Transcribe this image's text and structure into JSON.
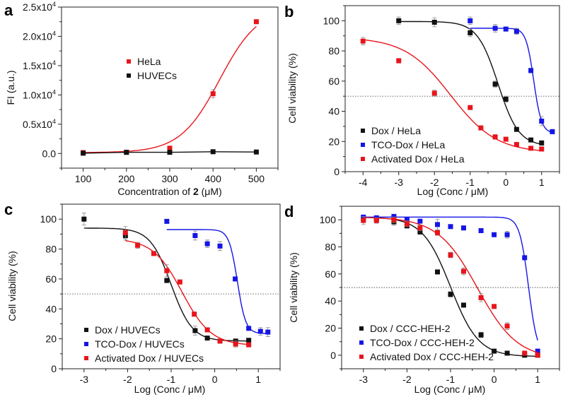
{
  "chart_data": [
    {
      "panel": "a",
      "type": "line",
      "title": "",
      "xlabel": "Concentration of 2 (μM)",
      "xlabel_parts": [
        "Concentration of ",
        "2",
        " (μM)"
      ],
      "ylabel": "FI (a.u.)",
      "xlim": [
        50,
        550
      ],
      "ylim": [
        -2500,
        25000
      ],
      "xticks": [
        100,
        200,
        300,
        400,
        500
      ],
      "xtick_labels": [
        "100",
        "200",
        "300",
        "400",
        "500"
      ],
      "yticks": [
        0,
        5000,
        10000,
        15000,
        20000,
        25000
      ],
      "ytick_labels": [
        "0.0",
        "0.5x10⁴",
        "1.0x10⁴",
        "1.5x10⁴",
        "2.0x10⁴",
        "2.5x10⁴"
      ],
      "grid": false,
      "legend_position": "center-left",
      "reference_line": null,
      "series": [
        {
          "name": "HeLa",
          "color": "#e8141b",
          "x": [
            100,
            200,
            300,
            400,
            500
          ],
          "y": [
            150,
            200,
            900,
            10200,
            22500
          ],
          "err": [
            0,
            0,
            0,
            700,
            0
          ],
          "fit": {
            "kind": "sigmoid-linear",
            "bottom": 150,
            "top": 25000,
            "x50": 415,
            "slope": 0.022
          }
        },
        {
          "name": "HUVECs",
          "color": "#111111",
          "x": [
            100,
            200,
            300,
            400,
            500
          ],
          "y": [
            50,
            200,
            200,
            300,
            250
          ],
          "err": [
            0,
            0,
            0,
            0,
            0
          ],
          "fit": {
            "kind": "flat",
            "value": 200
          }
        }
      ]
    },
    {
      "panel": "b",
      "type": "line",
      "title": "",
      "xlabel": "Log (Conc / μM)",
      "ylabel": "Cell viability (%)",
      "xlim": [
        -4.5,
        1.5
      ],
      "ylim": [
        0,
        110
      ],
      "xticks": [
        -4,
        -3,
        -2,
        -1,
        0,
        1
      ],
      "xtick_labels": [
        "-4",
        "-3",
        "-2",
        "-1",
        "0",
        "1"
      ],
      "yticks": [
        0,
        20,
        40,
        60,
        80,
        100
      ],
      "ytick_labels": [
        "0",
        "20",
        "40",
        "60",
        "80",
        "100"
      ],
      "grid": false,
      "legend_position": "bottom-left",
      "reference_line": 50,
      "series": [
        {
          "name": "Dox / HeLa",
          "color": "#111111",
          "x": [
            -3,
            -2,
            -1,
            -0.3,
            0,
            0.3,
            0.7,
            1
          ],
          "y": [
            100,
            99,
            92,
            58,
            48,
            28,
            21,
            19
          ],
          "err": [
            2.5,
            3,
            2.5,
            2,
            2,
            1,
            1,
            1.5
          ],
          "fit": {
            "kind": "logistic",
            "bottom": 17,
            "top": 99.5,
            "logIC50": -0.22,
            "hill": 1.5,
            "range": [
              -3,
              1
            ]
          }
        },
        {
          "name": "TCO-Dox / HeLa",
          "color": "#1515e6",
          "x": [
            -1,
            -0.3,
            0,
            0.3,
            0.7,
            1,
            1.3
          ],
          "y": [
            100,
            95,
            94.5,
            93,
            67,
            33.5,
            26.5
          ],
          "err": [
            2.5,
            2.5,
            1,
            2,
            1.5,
            3,
            1.5
          ],
          "fit": {
            "kind": "logistic",
            "bottom": 25.5,
            "top": 95,
            "logIC50": 0.78,
            "hill": 4,
            "range": [
              -1,
              1.3
            ]
          }
        },
        {
          "name": "Activated Dox / HeLa",
          "color": "#e8141b",
          "x": [
            -4,
            -3,
            -2,
            -1,
            -0.7,
            -0.3,
            0,
            0.3,
            0.7,
            1
          ],
          "y": [
            86.5,
            73.5,
            52,
            42.5,
            29,
            23,
            21.5,
            18,
            15.5,
            15
          ],
          "err": [
            2.5,
            1.5,
            2,
            0.5,
            0.5,
            1.5,
            1,
            0.5,
            1,
            1.5
          ],
          "fit": {
            "kind": "logistic",
            "bottom": 12.5,
            "top": 89,
            "logIC50": -1.55,
            "hill": 0.68,
            "range": [
              -4,
              1
            ]
          }
        }
      ]
    },
    {
      "panel": "c",
      "type": "line",
      "title": "",
      "xlabel": "Log (Conc / μM)",
      "ylabel": "Cell viability (%)",
      "xlim": [
        -3.5,
        1.5
      ],
      "ylim": [
        0,
        110
      ],
      "xticks": [
        -3,
        -2,
        -1,
        0,
        1
      ],
      "xtick_labels": [
        "-3",
        "-2",
        "-1",
        "0",
        "1"
      ],
      "yticks": [
        0,
        20,
        40,
        60,
        80,
        100
      ],
      "ytick_labels": [
        "0",
        "20",
        "40",
        "60",
        "80",
        "100"
      ],
      "grid": false,
      "legend_position": "bottom-left",
      "reference_line": 50,
      "series": [
        {
          "name": "Dox / HUVECs",
          "color": "#111111",
          "x": [
            -3,
            -2.05,
            -1.1,
            -0.45,
            -0.17,
            0.48,
            0.78
          ],
          "y": [
            100,
            89,
            59,
            25.5,
            20.5,
            18.5,
            19
          ],
          "err": [
            4,
            3,
            1.5,
            3,
            1,
            1,
            1
          ],
          "fit": {
            "kind": "logistic",
            "bottom": 18.5,
            "top": 94,
            "logIC50": -1.0,
            "hill": 1.8,
            "range": [
              -3,
              0.78
            ]
          }
        },
        {
          "name": "TCO-Dox / HUVECs",
          "color": "#1515e6",
          "x": [
            -1.1,
            -0.45,
            -0.17,
            0.12,
            0.47,
            0.78,
            1.05,
            1.22
          ],
          "y": [
            98.5,
            89,
            83.5,
            82,
            60,
            27,
            25,
            24.5
          ],
          "err": [
            1,
            3,
            2.5,
            3,
            1,
            1,
            2.5,
            3
          ],
          "fit": {
            "kind": "logistic",
            "bottom": 23.5,
            "top": 93,
            "logIC50": 0.52,
            "hill": 4.5,
            "range": [
              -1.1,
              1.22
            ]
          }
        },
        {
          "name": "Activated Dox / HUVECs",
          "color": "#e8141b",
          "x": [
            -2.05,
            -1.77,
            -1.4,
            -1.1,
            -0.8,
            -0.47,
            -0.17,
            0.12,
            0.48,
            0.78
          ],
          "y": [
            91,
            82.5,
            77,
            65.5,
            58,
            36.5,
            26,
            18.5,
            16.5,
            16
          ],
          "err": [
            4,
            2,
            1.5,
            4,
            1,
            1.5,
            1,
            1.5,
            2,
            1
          ],
          "fit": {
            "kind": "logistic",
            "bottom": 15.5,
            "top": 87,
            "logIC50": -0.75,
            "hill": 1.3,
            "range": [
              -2.05,
              0.78
            ]
          }
        }
      ]
    },
    {
      "panel": "d",
      "type": "line",
      "title": "",
      "xlabel": "Log (Conc / μM)",
      "ylabel": "Cell viability (%)",
      "xlim": [
        -3.5,
        1.5
      ],
      "ylim": [
        -10,
        110
      ],
      "xticks": [
        -3,
        -2,
        -1,
        0,
        1
      ],
      "xtick_labels": [
        "-3",
        "-2",
        "-1",
        "0",
        "1"
      ],
      "yticks": [
        0,
        20,
        40,
        60,
        80,
        100
      ],
      "ytick_labels": [
        "0",
        "20",
        "40",
        "60",
        "80",
        "100"
      ],
      "grid": false,
      "legend_position": "bottom-left",
      "reference_line": 50,
      "series": [
        {
          "name": "Dox / CCC-HEH-2",
          "color": "#111111",
          "x": [
            -3,
            -2.7,
            -2.3,
            -2,
            -1.7,
            -1.3,
            -1,
            -0.7,
            -0.3,
            0,
            0.3,
            0.7,
            1
          ],
          "y": [
            101,
            100.5,
            98.5,
            95.5,
            91,
            61.5,
            45,
            37,
            15,
            3,
            1.5,
            0,
            0
          ],
          "err": [
            1.5,
            1.5,
            2.5,
            1,
            1.5,
            0.5,
            2,
            0.5,
            2,
            0.5,
            0.5,
            0.5,
            0.5
          ],
          "fit": {
            "kind": "logistic",
            "bottom": -1,
            "top": 102,
            "logIC50": -1.0,
            "hill": 1.35,
            "range": [
              -3,
              1
            ]
          }
        },
        {
          "name": "TCO-Dox / CCC-HEH-2",
          "color": "#1515e6",
          "x": [
            -3,
            -2.7,
            -2.3,
            -2,
            -1.7,
            -1.3,
            -1,
            -0.7,
            -0.3,
            0,
            0.3,
            0.7,
            1
          ],
          "y": [
            102,
            101.5,
            102.5,
            100,
            99,
            96.5,
            95,
            94,
            92,
            89,
            89,
            72,
            3
          ],
          "err": [
            1,
            1,
            1,
            1,
            1,
            4,
            1,
            1,
            1.5,
            1,
            2.5,
            1,
            1
          ],
          "fit": {
            "kind": "logistic",
            "bottom": -1,
            "top": 102,
            "logIC50": 0.79,
            "hill": 4.2,
            "range": [
              -3,
              1
            ]
          }
        },
        {
          "name": "Activated Dox / CCC-HEH-2",
          "color": "#e8141b",
          "x": [
            -3,
            -2.7,
            -2.3,
            -2,
            -1.7,
            -1.3,
            -1,
            -0.7,
            -0.3,
            0,
            0.3,
            0.7,
            1
          ],
          "y": [
            99.5,
            99.5,
            100,
            97,
            94,
            90.5,
            74,
            62,
            42.5,
            36,
            21.5,
            1.5,
            0
          ],
          "err": [
            3,
            2,
            2,
            2,
            2,
            2,
            2,
            2.5,
            3,
            1,
            2.5,
            1,
            1
          ],
          "fit": {
            "kind": "logistic",
            "bottom": -3,
            "top": 102,
            "logIC50": -0.38,
            "hill": 0.95,
            "range": [
              -3,
              1
            ]
          }
        }
      ]
    }
  ]
}
